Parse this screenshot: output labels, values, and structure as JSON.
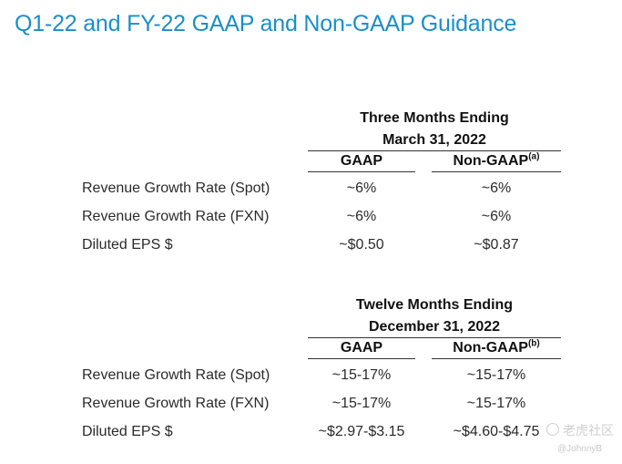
{
  "title": "Q1-22 and FY-22 GAAP and Non-GAAP Guidance",
  "q1": {
    "header_line1": "Three Months Ending",
    "header_line2": "March 31, 2022",
    "col_gaap": "GAAP",
    "col_nongaap": "Non-GAAP",
    "col_nongaap_note": "(a)",
    "rows": [
      {
        "label": "Revenue Growth Rate (Spot)",
        "gaap": "~6%",
        "nongaap": "~6%"
      },
      {
        "label": "Revenue Growth Rate (FXN)",
        "gaap": "~6%",
        "nongaap": "~6%"
      },
      {
        "label": "Diluted EPS $",
        "gaap": "~$0.50",
        "nongaap": "~$0.87"
      }
    ]
  },
  "fy": {
    "header_line1": "Twelve Months Ending",
    "header_line2": "December 31, 2022",
    "col_gaap": "GAAP",
    "col_nongaap": "Non-GAAP",
    "col_nongaap_note": "(b)",
    "rows": [
      {
        "label": "Revenue Growth Rate (Spot)",
        "gaap": "~15-17%",
        "nongaap": "~15-17%"
      },
      {
        "label": "Revenue Growth Rate (FXN)",
        "gaap": "~15-17%",
        "nongaap": "~15-17%"
      },
      {
        "label": "Diluted EPS $",
        "gaap": "~$2.97-$3.15",
        "nongaap": "~$4.60-$4.75"
      }
    ]
  },
  "watermark": {
    "text": "老虎社区",
    "user": "@JohnnyB"
  }
}
